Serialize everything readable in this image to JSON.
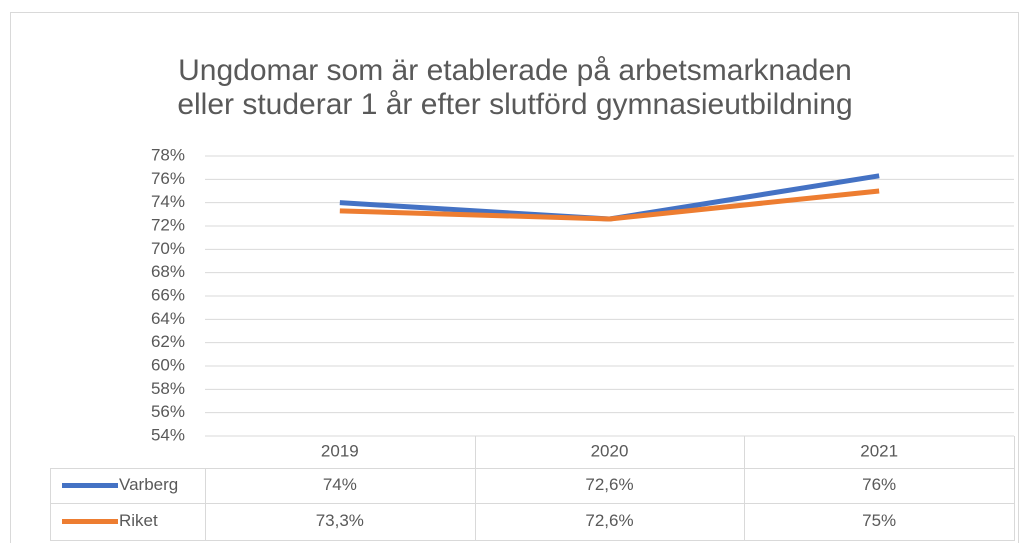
{
  "chart_data": {
    "type": "line",
    "title": [
      "Ungdomar som är etablerade på arbetsmarknaden",
      "eller studerar 1 år efter slutförd gymnasieutbildning"
    ],
    "categories": [
      "2019",
      "2020",
      "2021"
    ],
    "series": [
      {
        "name": "Varberg",
        "color": "#4472c4",
        "values": [
          74,
          72.6,
          76.3
        ],
        "value_labels": [
          "74%",
          "72,6%",
          "76%"
        ]
      },
      {
        "name": "Riket",
        "color": "#ed7d31",
        "values": [
          73.3,
          72.6,
          75
        ],
        "value_labels": [
          "73,3%",
          "72,6%",
          "75%"
        ]
      }
    ],
    "ylim": [
      54,
      78
    ],
    "yticks": [
      {
        "value": 54,
        "label": "54%"
      },
      {
        "value": 56,
        "label": "56%"
      },
      {
        "value": 58,
        "label": "58%"
      },
      {
        "value": 60,
        "label": "60%"
      },
      {
        "value": 62,
        "label": "62%"
      },
      {
        "value": 64,
        "label": "64%"
      },
      {
        "value": 66,
        "label": "66%"
      },
      {
        "value": 68,
        "label": "68%"
      },
      {
        "value": 70,
        "label": "70%"
      },
      {
        "value": 72,
        "label": "72%"
      },
      {
        "value": 74,
        "label": "74%"
      },
      {
        "value": 76,
        "label": "76%"
      },
      {
        "value": 78,
        "label": "78%"
      }
    ],
    "grid": true,
    "data_table": true
  }
}
